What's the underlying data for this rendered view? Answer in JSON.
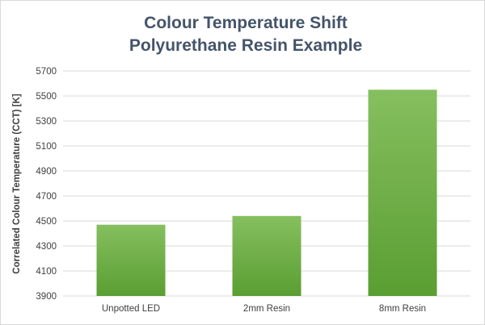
{
  "chart_data": {
    "type": "bar",
    "title": [
      "Colour Temperature Shift",
      "Polyurethane Resin Example"
    ],
    "ylabel": "Correlated Colour Temperature (CCT) [K]",
    "xlabel": "",
    "categories": [
      "Unpotted LED",
      "2mm Resin",
      "8mm Resin"
    ],
    "values": [
      4470,
      4540,
      5550
    ],
    "ylim": [
      3900,
      5700
    ],
    "yticks": [
      3900,
      4100,
      4300,
      4500,
      4700,
      4900,
      5100,
      5300,
      5500,
      5700
    ],
    "grid": true,
    "legend": "none",
    "colors": {
      "bar_top": "#86bf5f",
      "bar_bottom": "#5a9e32",
      "title": "#44546a",
      "grid": "#d9d9d9"
    }
  }
}
